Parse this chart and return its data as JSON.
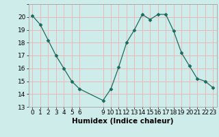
{
  "x": [
    0,
    1,
    2,
    3,
    4,
    5,
    6,
    9,
    10,
    11,
    12,
    13,
    14,
    15,
    16,
    17,
    18,
    19,
    20,
    21,
    22,
    23
  ],
  "y": [
    20.1,
    19.4,
    18.2,
    17.0,
    16.0,
    15.0,
    14.4,
    13.5,
    14.4,
    16.1,
    18.0,
    19.0,
    20.2,
    19.8,
    20.2,
    20.2,
    18.9,
    17.2,
    16.2,
    15.2,
    15.0,
    14.5
  ],
  "line_color": "#1a6b5e",
  "marker": "D",
  "marker_size": 2.5,
  "bg_color": "#ceecea",
  "grid_color": "#e8b8b8",
  "xlabel": "Humidex (Indice chaleur)",
  "xlim": [
    -0.5,
    23.5
  ],
  "ylim": [
    13,
    21
  ],
  "yticks": [
    13,
    14,
    15,
    16,
    17,
    18,
    19,
    20
  ],
  "xticks": [
    0,
    1,
    2,
    3,
    4,
    5,
    6,
    9,
    10,
    11,
    12,
    13,
    14,
    15,
    16,
    17,
    18,
    19,
    20,
    21,
    22,
    23
  ],
  "xlabel_fontsize": 7.5,
  "tick_fontsize": 6.5,
  "linewidth": 0.9
}
